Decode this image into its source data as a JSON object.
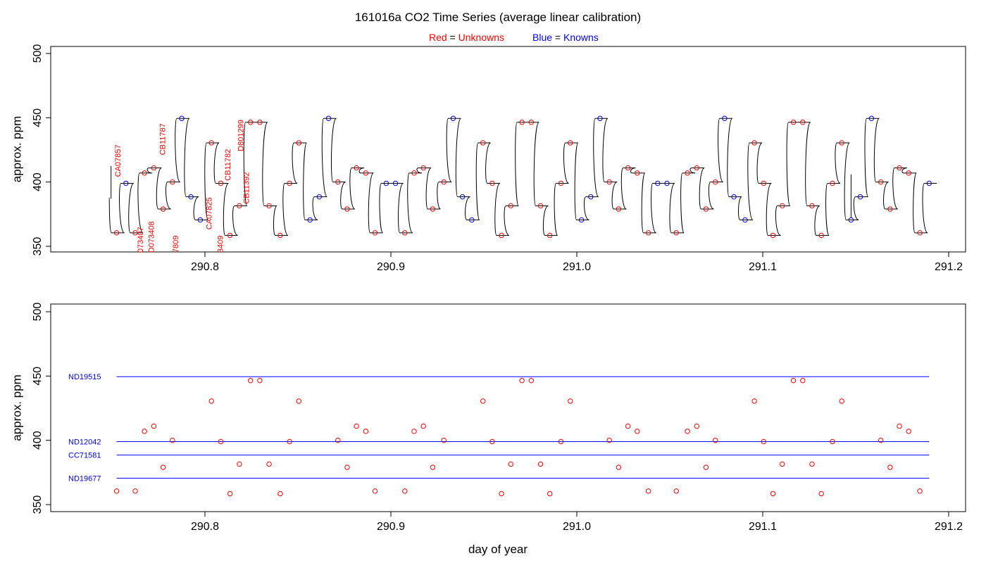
{
  "title": "161016a   CO2 Time Series (average linear calibration)",
  "legend": {
    "red_prefix": "Red",
    "red_eq": " = ",
    "red_label": "Unknowns",
    "blue_prefix": "Blue",
    "blue_eq": " = ",
    "blue_label": "Knowns"
  },
  "colors": {
    "unknown": "#ff0000",
    "known": "#0000ff",
    "trace": "#000000",
    "axis": "#000000"
  },
  "chart_data": [
    {
      "type": "line",
      "name": "top-panel",
      "xlabel": "",
      "ylabel": "approx. ppm",
      "xlim": [
        290.72,
        291.2
      ],
      "ylim": [
        345,
        502
      ],
      "xticks": [
        {
          "value": 290.8,
          "label": "290.8"
        },
        {
          "value": 290.9,
          "label": "290.9"
        },
        {
          "value": 291.0,
          "label": "291.0"
        },
        {
          "value": 291.1,
          "label": "291.1"
        },
        {
          "value": 291.2,
          "label": "291.2"
        }
      ],
      "yticks": [
        {
          "value": 350,
          "label": "350"
        },
        {
          "value": 400,
          "label": "400"
        },
        {
          "value": 450,
          "label": "450"
        },
        {
          "value": 500,
          "label": "500"
        }
      ],
      "levels": [
        {
          "x": 290.7525,
          "y": 360.5,
          "kind": "unknown"
        },
        {
          "x": 290.7575,
          "y": 399.0,
          "kind": "known"
        },
        {
          "x": 290.7625,
          "y": 360.5,
          "kind": "unknown"
        },
        {
          "x": 290.7675,
          "y": 407.0,
          "kind": "unknown"
        },
        {
          "x": 290.7725,
          "y": 411.0,
          "kind": "unknown"
        },
        {
          "x": 290.7775,
          "y": 379.0,
          "kind": "unknown"
        },
        {
          "x": 290.7825,
          "y": 400.0,
          "kind": "unknown"
        },
        {
          "x": 290.7875,
          "y": 449.5,
          "kind": "known"
        },
        {
          "x": 290.7925,
          "y": 388.5,
          "kind": "known"
        },
        {
          "x": 290.7975,
          "y": 370.5,
          "kind": "known"
        },
        {
          "x": 290.8035,
          "y": 430.5,
          "kind": "unknown"
        },
        {
          "x": 290.8085,
          "y": 399.0,
          "kind": "unknown"
        },
        {
          "x": 290.8135,
          "y": 358.5,
          "kind": "unknown"
        },
        {
          "x": 290.8185,
          "y": 381.5,
          "kind": "unknown"
        },
        {
          "x": 290.8245,
          "y": 446.5,
          "kind": "unknown"
        },
        {
          "x": 290.8295,
          "y": 446.5,
          "kind": "unknown"
        },
        {
          "x": 290.8345,
          "y": 381.5,
          "kind": "unknown"
        },
        {
          "x": 290.8405,
          "y": 358.5,
          "kind": "unknown"
        },
        {
          "x": 290.8455,
          "y": 399.0,
          "kind": "unknown"
        },
        {
          "x": 290.8505,
          "y": 430.5,
          "kind": "unknown"
        },
        {
          "x": 290.8565,
          "y": 370.5,
          "kind": "known"
        },
        {
          "x": 290.8615,
          "y": 388.5,
          "kind": "known"
        },
        {
          "x": 290.8665,
          "y": 449.5,
          "kind": "known"
        },
        {
          "x": 290.8715,
          "y": 400.0,
          "kind": "unknown"
        },
        {
          "x": 290.8765,
          "y": 379.0,
          "kind": "unknown"
        },
        {
          "x": 290.8815,
          "y": 411.0,
          "kind": "unknown"
        },
        {
          "x": 290.8865,
          "y": 407.0,
          "kind": "unknown"
        },
        {
          "x": 290.8915,
          "y": 360.5,
          "kind": "unknown"
        },
        {
          "x": 290.8975,
          "y": 399.0,
          "kind": "known"
        },
        {
          "x": 290.9025,
          "y": 399.0,
          "kind": "known"
        },
        {
          "x": 290.9075,
          "y": 360.5,
          "kind": "unknown"
        },
        {
          "x": 290.9125,
          "y": 407.0,
          "kind": "unknown"
        },
        {
          "x": 290.9175,
          "y": 411.0,
          "kind": "unknown"
        },
        {
          "x": 290.9225,
          "y": 379.0,
          "kind": "unknown"
        },
        {
          "x": 290.9285,
          "y": 400.0,
          "kind": "unknown"
        },
        {
          "x": 290.9335,
          "y": 449.5,
          "kind": "known"
        },
        {
          "x": 290.9385,
          "y": 388.5,
          "kind": "known"
        },
        {
          "x": 290.9435,
          "y": 370.5,
          "kind": "known"
        },
        {
          "x": 290.9495,
          "y": 430.5,
          "kind": "unknown"
        },
        {
          "x": 290.9545,
          "y": 399.0,
          "kind": "unknown"
        },
        {
          "x": 290.9595,
          "y": 358.5,
          "kind": "unknown"
        },
        {
          "x": 290.9645,
          "y": 381.5,
          "kind": "unknown"
        },
        {
          "x": 290.9705,
          "y": 446.5,
          "kind": "unknown"
        },
        {
          "x": 290.9755,
          "y": 446.5,
          "kind": "unknown"
        },
        {
          "x": 290.9805,
          "y": 381.5,
          "kind": "unknown"
        },
        {
          "x": 290.9855,
          "y": 358.5,
          "kind": "unknown"
        },
        {
          "x": 290.9915,
          "y": 399.0,
          "kind": "unknown"
        },
        {
          "x": 290.9965,
          "y": 430.5,
          "kind": "unknown"
        },
        {
          "x": 291.0025,
          "y": 370.5,
          "kind": "known"
        },
        {
          "x": 291.0075,
          "y": 388.5,
          "kind": "known"
        },
        {
          "x": 291.0125,
          "y": 449.5,
          "kind": "known"
        },
        {
          "x": 291.0175,
          "y": 400.0,
          "kind": "unknown"
        },
        {
          "x": 291.0225,
          "y": 379.0,
          "kind": "unknown"
        },
        {
          "x": 291.0275,
          "y": 411.0,
          "kind": "unknown"
        },
        {
          "x": 291.0325,
          "y": 407.0,
          "kind": "unknown"
        },
        {
          "x": 291.0385,
          "y": 360.5,
          "kind": "unknown"
        },
        {
          "x": 291.0435,
          "y": 399.0,
          "kind": "known"
        },
        {
          "x": 291.0485,
          "y": 399.0,
          "kind": "known"
        },
        {
          "x": 291.0535,
          "y": 360.5,
          "kind": "unknown"
        },
        {
          "x": 291.0595,
          "y": 407.0,
          "kind": "unknown"
        },
        {
          "x": 291.0645,
          "y": 411.0,
          "kind": "unknown"
        },
        {
          "x": 291.0695,
          "y": 379.0,
          "kind": "unknown"
        },
        {
          "x": 291.0745,
          "y": 400.0,
          "kind": "unknown"
        },
        {
          "x": 291.0795,
          "y": 449.5,
          "kind": "known"
        },
        {
          "x": 291.0845,
          "y": 388.5,
          "kind": "known"
        },
        {
          "x": 291.0905,
          "y": 370.5,
          "kind": "known"
        },
        {
          "x": 291.0955,
          "y": 430.5,
          "kind": "unknown"
        },
        {
          "x": 291.1005,
          "y": 399.0,
          "kind": "unknown"
        },
        {
          "x": 291.1055,
          "y": 358.5,
          "kind": "unknown"
        },
        {
          "x": 291.1105,
          "y": 381.5,
          "kind": "unknown"
        },
        {
          "x": 291.1165,
          "y": 446.5,
          "kind": "unknown"
        },
        {
          "x": 291.1215,
          "y": 446.5,
          "kind": "unknown"
        },
        {
          "x": 291.1265,
          "y": 381.5,
          "kind": "unknown"
        },
        {
          "x": 291.1315,
          "y": 358.5,
          "kind": "unknown"
        },
        {
          "x": 291.1375,
          "y": 399.0,
          "kind": "unknown"
        },
        {
          "x": 291.1425,
          "y": 430.5,
          "kind": "unknown"
        },
        {
          "x": 291.1475,
          "y": 370.5,
          "kind": "known"
        },
        {
          "x": 291.1525,
          "y": 388.5,
          "kind": "known"
        },
        {
          "x": 291.1585,
          "y": 449.5,
          "kind": "known"
        },
        {
          "x": 291.1635,
          "y": 400.0,
          "kind": "unknown"
        },
        {
          "x": 291.1685,
          "y": 379.0,
          "kind": "unknown"
        },
        {
          "x": 291.1735,
          "y": 411.0,
          "kind": "unknown"
        },
        {
          "x": 291.1785,
          "y": 407.0,
          "kind": "unknown"
        },
        {
          "x": 291.1845,
          "y": 360.5,
          "kind": "unknown"
        },
        {
          "x": 291.1895,
          "y": 399.0,
          "kind": "known"
        }
      ],
      "trace_start": {
        "x": 290.7485,
        "y": 388.0
      },
      "spikes": [
        {
          "x": 290.7495,
          "y_from": 387.0,
          "y_to": 412.5
        },
        {
          "x": 291.1475,
          "y_from": 372.0,
          "y_to": 406.0
        }
      ],
      "annotations": [
        {
          "text": "CA07857",
          "x": 290.7535,
          "y": 404.0
        },
        {
          "text": "073407",
          "x": 290.7655,
          "y": 345.0
        },
        {
          "text": "D073408",
          "x": 290.7715,
          "y": 345.0
        },
        {
          "text": "CB11787",
          "x": 290.7775,
          "y": 421.0
        },
        {
          "text": "7809",
          "x": 290.7845,
          "y": 345.0
        },
        {
          "text": "CA07825",
          "x": 290.8025,
          "y": 363.0
        },
        {
          "text": "3409",
          "x": 290.8085,
          "y": 345.0
        },
        {
          "text": "CB11782",
          "x": 290.8125,
          "y": 401.0
        },
        {
          "text": "D801299",
          "x": 290.8195,
          "y": 424.0
        },
        {
          "text": "CB11392",
          "x": 290.8225,
          "y": 383.0
        }
      ]
    },
    {
      "type": "scatter",
      "name": "bottom-panel",
      "xlabel": "day of year",
      "ylabel": "approx. ppm",
      "xlim": [
        290.72,
        291.2
      ],
      "ylim": [
        345,
        502
      ],
      "xticks": [
        {
          "value": 290.8,
          "label": "290.8"
        },
        {
          "value": 290.9,
          "label": "290.9"
        },
        {
          "value": 291.0,
          "label": "291.0"
        },
        {
          "value": 291.1,
          "label": "291.1"
        },
        {
          "value": 291.2,
          "label": "291.2"
        }
      ],
      "yticks": [
        {
          "value": 350,
          "label": "350"
        },
        {
          "value": 400,
          "label": "400"
        },
        {
          "value": 450,
          "label": "450"
        },
        {
          "value": 500,
          "label": "500"
        }
      ],
      "reference_lines": [
        {
          "name": "ND19515",
          "y": 449.5,
          "x_start": 290.7525,
          "x_end": 291.1895
        },
        {
          "name": "ND12042",
          "y": 399.0,
          "x_start": 290.7525,
          "x_end": 291.1895
        },
        {
          "name": "CC71581",
          "y": 388.5,
          "x_start": 290.7525,
          "x_end": 291.1895
        },
        {
          "name": "ND19677",
          "y": 370.5,
          "x_start": 290.7525,
          "x_end": 291.1895
        }
      ],
      "points_source": "unknown levels of top-panel"
    }
  ]
}
